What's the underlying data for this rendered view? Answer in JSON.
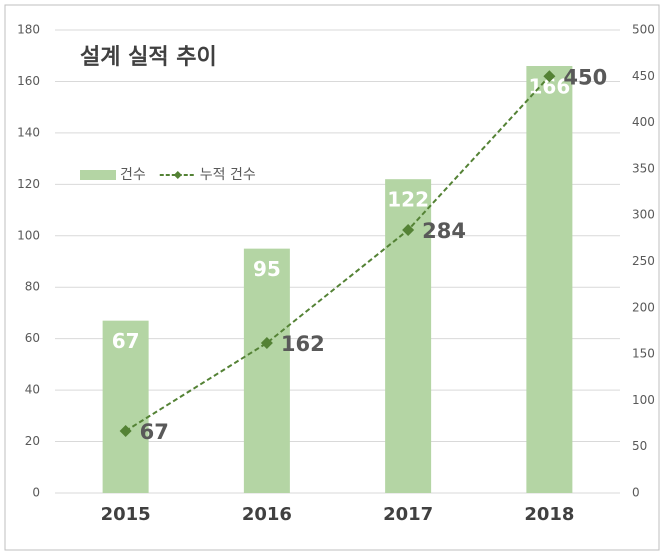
{
  "chart_data": {
    "type": "bar",
    "title": "설계 실적 추이",
    "categories": [
      "2015",
      "2016",
      "2017",
      "2018"
    ],
    "series": [
      {
        "name": "건수",
        "type": "bar",
        "color": "#b4d5a4",
        "values": [
          67,
          95,
          122,
          166
        ]
      },
      {
        "name": "누적 건수",
        "type": "line",
        "axis": "y2",
        "color": "#548235",
        "values": [
          67,
          162,
          284,
          450
        ]
      }
    ],
    "ylim": [
      0,
      180
    ],
    "yticks": [
      0,
      20,
      40,
      60,
      80,
      100,
      120,
      140,
      160,
      180
    ],
    "y2lim": [
      0,
      500
    ],
    "y2ticks": [
      0,
      50,
      100,
      150,
      200,
      250,
      300,
      350,
      400,
      450,
      500
    ],
    "grid": true,
    "legend": "left"
  }
}
